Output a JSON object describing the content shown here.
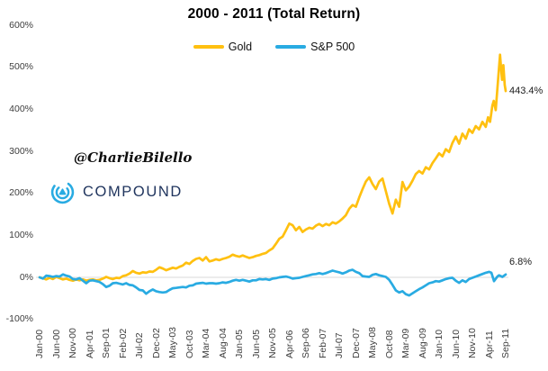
{
  "title": "2000 - 2011 (Total Return)",
  "watermark": {
    "handle": "@CharlieBilello",
    "brand": "COMPOUND"
  },
  "colors": {
    "gold": "#FFC010",
    "sp500": "#29ABE2",
    "zero_gridline": "#d8d8d8",
    "brand_navy": "#20355E",
    "brand_cyan": "#29ABE2",
    "axis_text": "#3d3d3d"
  },
  "chart_data": {
    "type": "line",
    "title": "2000 - 2011 (Total Return)",
    "x_unit": "months since Jan-2000",
    "x_tick_interval_months": 5,
    "x_tick_labels": [
      "Jan-00",
      "Jun-00",
      "Nov-00",
      "Apr-01",
      "Sep-01",
      "Feb-02",
      "Jul-02",
      "Dec-02",
      "May-03",
      "Oct-03",
      "Mar-04",
      "Aug-04",
      "Jan-05",
      "Jun-05",
      "Nov-05",
      "Apr-06",
      "Sep-06",
      "Feb-07",
      "Jul-07",
      "Dec-07",
      "May-08",
      "Oct-08",
      "Mar-09",
      "Aug-09",
      "Jan-10",
      "Jun-10",
      "Nov-10",
      "Apr-11",
      "Sep-11"
    ],
    "ylim": [
      -100,
      600
    ],
    "y_ticks": [
      "600%",
      "500%",
      "400%",
      "300%",
      "200%",
      "100%",
      "0%",
      "-100%"
    ],
    "grid": "horizontal line at 0% only",
    "legend_position": "top-center",
    "series": [
      {
        "name": "Gold",
        "color": "#FFC010",
        "end_label": "443.4%",
        "points": [
          [
            0,
            0
          ],
          [
            1,
            -2
          ],
          [
            2,
            -5
          ],
          [
            3,
            -1
          ],
          [
            4,
            -4
          ],
          [
            5,
            1
          ],
          [
            6,
            -2
          ],
          [
            7,
            -5
          ],
          [
            8,
            -3
          ],
          [
            9,
            -6
          ],
          [
            10,
            -8
          ],
          [
            11,
            -5
          ],
          [
            12,
            -7
          ],
          [
            13,
            -5
          ],
          [
            14,
            -8
          ],
          [
            15,
            -6
          ],
          [
            16,
            -5
          ],
          [
            17,
            -7
          ],
          [
            18,
            -6
          ],
          [
            19,
            -3
          ],
          [
            20,
            1
          ],
          [
            21,
            -2
          ],
          [
            22,
            -4
          ],
          [
            23,
            -1
          ],
          [
            24,
            -2
          ],
          [
            25,
            3
          ],
          [
            26,
            5
          ],
          [
            27,
            9
          ],
          [
            28,
            15
          ],
          [
            29,
            11
          ],
          [
            30,
            9
          ],
          [
            31,
            12
          ],
          [
            32,
            11
          ],
          [
            33,
            14
          ],
          [
            34,
            13
          ],
          [
            35,
            18
          ],
          [
            36,
            24
          ],
          [
            37,
            21
          ],
          [
            38,
            17
          ],
          [
            39,
            20
          ],
          [
            40,
            23
          ],
          [
            41,
            21
          ],
          [
            42,
            25
          ],
          [
            43,
            28
          ],
          [
            44,
            35
          ],
          [
            45,
            32
          ],
          [
            46,
            39
          ],
          [
            47,
            44
          ],
          [
            48,
            46
          ],
          [
            49,
            40
          ],
          [
            50,
            48
          ],
          [
            51,
            38
          ],
          [
            52,
            40
          ],
          [
            53,
            43
          ],
          [
            54,
            41
          ],
          [
            55,
            44
          ],
          [
            56,
            46
          ],
          [
            57,
            49
          ],
          [
            58,
            54
          ],
          [
            59,
            51
          ],
          [
            60,
            49
          ],
          [
            61,
            52
          ],
          [
            62,
            49
          ],
          [
            63,
            46
          ],
          [
            64,
            48
          ],
          [
            65,
            51
          ],
          [
            66,
            53
          ],
          [
            67,
            56
          ],
          [
            68,
            58
          ],
          [
            69,
            64
          ],
          [
            70,
            69
          ],
          [
            71,
            80
          ],
          [
            72,
            92
          ],
          [
            73,
            97
          ],
          [
            74,
            112
          ],
          [
            75,
            128
          ],
          [
            76,
            124
          ],
          [
            77,
            112
          ],
          [
            78,
            120
          ],
          [
            79,
            108
          ],
          [
            80,
            114
          ],
          [
            81,
            118
          ],
          [
            82,
            116
          ],
          [
            83,
            123
          ],
          [
            84,
            127
          ],
          [
            85,
            122
          ],
          [
            86,
            127
          ],
          [
            87,
            124
          ],
          [
            88,
            131
          ],
          [
            89,
            128
          ],
          [
            90,
            133
          ],
          [
            91,
            140
          ],
          [
            92,
            148
          ],
          [
            93,
            163
          ],
          [
            94,
            172
          ],
          [
            95,
            168
          ],
          [
            96,
            190
          ],
          [
            97,
            210
          ],
          [
            98,
            228
          ],
          [
            99,
            238
          ],
          [
            100,
            222
          ],
          [
            101,
            210
          ],
          [
            102,
            228
          ],
          [
            103,
            235
          ],
          [
            104,
            205
          ],
          [
            105,
            175
          ],
          [
            106,
            152
          ],
          [
            107,
            185
          ],
          [
            108,
            168
          ],
          [
            109,
            227
          ],
          [
            110,
            207
          ],
          [
            111,
            216
          ],
          [
            112,
            230
          ],
          [
            113,
            246
          ],
          [
            114,
            253
          ],
          [
            115,
            247
          ],
          [
            116,
            262
          ],
          [
            117,
            257
          ],
          [
            118,
            272
          ],
          [
            119,
            283
          ],
          [
            120,
            295
          ],
          [
            121,
            288
          ],
          [
            122,
            305
          ],
          [
            123,
            298
          ],
          [
            124,
            320
          ],
          [
            125,
            335
          ],
          [
            126,
            318
          ],
          [
            127,
            342
          ],
          [
            128,
            330
          ],
          [
            129,
            352
          ],
          [
            130,
            344
          ],
          [
            131,
            360
          ],
          [
            132,
            352
          ],
          [
            133,
            370
          ],
          [
            134,
            358
          ],
          [
            134.7,
            381
          ],
          [
            135.3,
            370
          ],
          [
            136,
            409
          ],
          [
            136.4,
            420
          ],
          [
            137,
            398
          ],
          [
            138.3,
            530
          ],
          [
            138.9,
            470
          ],
          [
            139.3,
            505
          ],
          [
            139.7,
            458
          ],
          [
            140,
            443.4
          ]
        ]
      },
      {
        "name": "S&P 500",
        "color": "#29ABE2",
        "end_label": "6.8%",
        "points": [
          [
            0,
            0
          ],
          [
            1,
            -3
          ],
          [
            2,
            4
          ],
          [
            3,
            3
          ],
          [
            4,
            1
          ],
          [
            5,
            3
          ],
          [
            6,
            2
          ],
          [
            7,
            7
          ],
          [
            8,
            4
          ],
          [
            9,
            2
          ],
          [
            10,
            -4
          ],
          [
            11,
            -5
          ],
          [
            12,
            -2
          ],
          [
            13,
            -8
          ],
          [
            14,
            -14
          ],
          [
            15,
            -8
          ],
          [
            16,
            -7
          ],
          [
            17,
            -9
          ],
          [
            18,
            -11
          ],
          [
            19,
            -16
          ],
          [
            20,
            -23
          ],
          [
            21,
            -20
          ],
          [
            22,
            -14
          ],
          [
            23,
            -13
          ],
          [
            24,
            -15
          ],
          [
            25,
            -17
          ],
          [
            26,
            -14
          ],
          [
            27,
            -18
          ],
          [
            28,
            -19
          ],
          [
            29,
            -24
          ],
          [
            30,
            -30
          ],
          [
            31,
            -31
          ],
          [
            32,
            -39
          ],
          [
            33,
            -33
          ],
          [
            34,
            -29
          ],
          [
            35,
            -33
          ],
          [
            36,
            -35
          ],
          [
            37,
            -36
          ],
          [
            38,
            -35
          ],
          [
            39,
            -30
          ],
          [
            40,
            -26
          ],
          [
            41,
            -25
          ],
          [
            42,
            -24
          ],
          [
            43,
            -23
          ],
          [
            44,
            -24
          ],
          [
            45,
            -20
          ],
          [
            46,
            -19
          ],
          [
            47,
            -15
          ],
          [
            48,
            -14
          ],
          [
            49,
            -13
          ],
          [
            50,
            -15
          ],
          [
            51,
            -14
          ],
          [
            52,
            -14
          ],
          [
            53,
            -15
          ],
          [
            54,
            -14
          ],
          [
            55,
            -12
          ],
          [
            56,
            -13
          ],
          [
            57,
            -11
          ],
          [
            58,
            -8
          ],
          [
            59,
            -6
          ],
          [
            60,
            -8
          ],
          [
            61,
            -6
          ],
          [
            62,
            -8
          ],
          [
            63,
            -10
          ],
          [
            64,
            -7
          ],
          [
            65,
            -7
          ],
          [
            66,
            -4
          ],
          [
            67,
            -5
          ],
          [
            68,
            -4
          ],
          [
            69,
            -6
          ],
          [
            70,
            -3
          ],
          [
            71,
            -2
          ],
          [
            72,
            0
          ],
          [
            73,
            1
          ],
          [
            74,
            2
          ],
          [
            75,
            0
          ],
          [
            76,
            -3
          ],
          [
            77,
            -2
          ],
          [
            78,
            -1
          ],
          [
            79,
            1
          ],
          [
            80,
            3
          ],
          [
            81,
            5
          ],
          [
            82,
            7
          ],
          [
            83,
            8
          ],
          [
            84,
            10
          ],
          [
            85,
            8
          ],
          [
            86,
            10
          ],
          [
            87,
            13
          ],
          [
            88,
            16
          ],
          [
            89,
            14
          ],
          [
            90,
            12
          ],
          [
            91,
            9
          ],
          [
            92,
            12
          ],
          [
            93,
            16
          ],
          [
            94,
            18
          ],
          [
            95,
            13
          ],
          [
            96,
            10
          ],
          [
            97,
            3
          ],
          [
            98,
            2
          ],
          [
            99,
            1
          ],
          [
            100,
            6
          ],
          [
            101,
            8
          ],
          [
            102,
            5
          ],
          [
            103,
            3
          ],
          [
            104,
            1
          ],
          [
            105,
            -6
          ],
          [
            106,
            -18
          ],
          [
            107,
            -31
          ],
          [
            108,
            -36
          ],
          [
            109,
            -33
          ],
          [
            110,
            -40
          ],
          [
            111,
            -43
          ],
          [
            112,
            -38
          ],
          [
            113,
            -33
          ],
          [
            114,
            -28
          ],
          [
            115,
            -24
          ],
          [
            116,
            -19
          ],
          [
            117,
            -14
          ],
          [
            118,
            -12
          ],
          [
            119,
            -9
          ],
          [
            120,
            -10
          ],
          [
            121,
            -7
          ],
          [
            122,
            -4
          ],
          [
            123,
            -2
          ],
          [
            124,
            -1
          ],
          [
            125,
            -8
          ],
          [
            126,
            -13
          ],
          [
            127,
            -7
          ],
          [
            128,
            -11
          ],
          [
            129,
            -4
          ],
          [
            130,
            -1
          ],
          [
            131,
            2
          ],
          [
            132,
            5
          ],
          [
            133,
            8
          ],
          [
            134,
            11
          ],
          [
            135,
            13
          ],
          [
            135.7,
            11
          ],
          [
            136.5,
            -9
          ],
          [
            137.5,
            2
          ],
          [
            138,
            5
          ],
          [
            139,
            1
          ],
          [
            140,
            6.8
          ]
        ]
      }
    ]
  }
}
